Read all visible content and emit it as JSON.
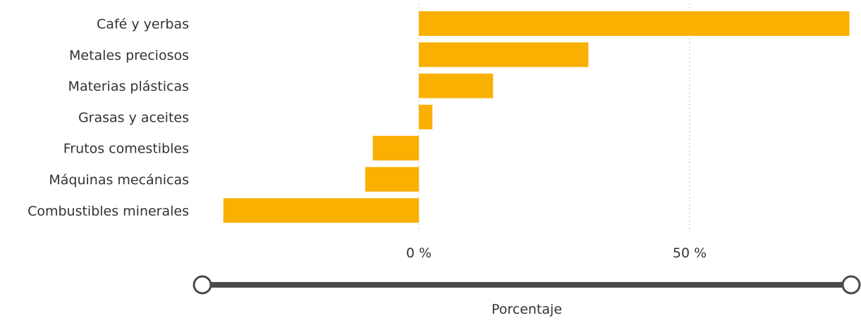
{
  "chart_data": {
    "type": "bar",
    "orientation": "horizontal",
    "categories": [
      "Café y yerbas",
      "Metales preciosos",
      "Materias plásticas",
      "Grasas y aceites",
      "Frutos comestibles",
      "Máquinas mecánicas",
      "Combustibles minerales"
    ],
    "series": [
      {
        "values": [
          79.5,
          31.3,
          13.7,
          2.5,
          -8.5,
          -9.9,
          -36.1
        ]
      }
    ],
    "xlabel": "Porcentaje",
    "ylabel": "",
    "xlim": [
      -36.1,
      79.5
    ],
    "xticks": [
      0,
      50
    ],
    "xtick_labels": [
      "0 %",
      "50 %"
    ],
    "grid": "vertical-dotted",
    "colors": {
      "bar": "#F9B000",
      "slider": "#4a4a4a",
      "grid": "#c8c8c8",
      "text": "#333333"
    },
    "range_slider": {
      "min": -36.1,
      "max": 79.5
    }
  }
}
